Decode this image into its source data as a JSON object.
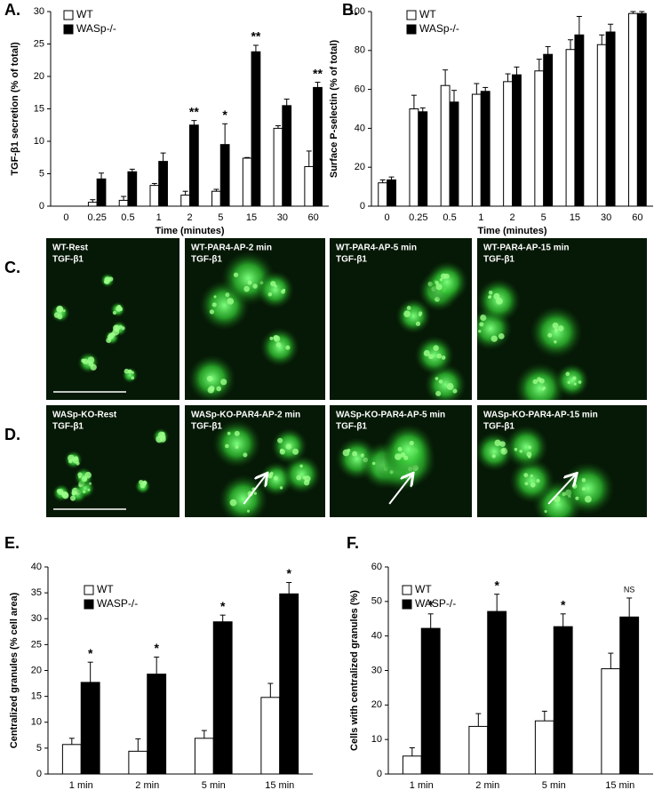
{
  "chart_data": [
    {
      "type": "bar",
      "panel_label": "A.",
      "y_label": "TGF-β1 secretion (% of total)",
      "x_label": "Time (minutes)",
      "categories": [
        "0",
        "0.25",
        "0.5",
        "1",
        "2",
        "5",
        "15",
        "30",
        "60"
      ],
      "series": [
        {
          "name": "WT",
          "color": "#ffffff",
          "values": [
            0,
            0.6,
            0.9,
            3.2,
            1.7,
            2.3,
            7.4,
            12,
            6.1
          ],
          "errors": [
            0,
            0.4,
            0.6,
            0.3,
            0.6,
            0.3,
            0.1,
            0.4,
            2.4
          ]
        },
        {
          "name": "WASp-/-",
          "color": "#000000",
          "values": [
            0,
            4.2,
            5.3,
            6.9,
            12.5,
            9.5,
            23.8,
            15.5,
            18.3
          ],
          "errors": [
            0,
            0.9,
            0.4,
            1.3,
            0.7,
            3.2,
            1.0,
            1.0,
            0.8
          ]
        }
      ],
      "significance": [
        null,
        null,
        null,
        null,
        "**",
        "*",
        "**",
        null,
        "**"
      ],
      "ylim": [
        0,
        30
      ],
      "yticks": [
        0,
        5,
        10,
        15,
        20,
        25,
        30
      ]
    },
    {
      "type": "bar",
      "panel_label": "B.",
      "y_label": "Surface P-selectin (% of total)",
      "x_label": "Time (minutes)",
      "categories": [
        "0",
        "0.25",
        "0.5",
        "1",
        "2",
        "5",
        "15",
        "30",
        "60"
      ],
      "series": [
        {
          "name": "WT",
          "color": "#ffffff",
          "values": [
            12,
            50,
            62,
            57.5,
            64,
            69.5,
            80.5,
            83,
            99
          ],
          "errors": [
            1.5,
            7,
            8,
            5.5,
            4,
            6,
            5,
            5,
            1
          ]
        },
        {
          "name": "WASp-/-",
          "color": "#000000",
          "values": [
            13.5,
            48.5,
            53.5,
            59,
            67.5,
            78,
            88,
            89.5,
            99
          ],
          "errors": [
            1.5,
            2,
            6,
            2,
            4,
            4,
            9.5,
            4,
            1
          ]
        }
      ],
      "ylim": [
        0,
        100
      ],
      "yticks": [
        0,
        20,
        40,
        60,
        80,
        100
      ]
    },
    {
      "type": "bar",
      "panel_label": "E.",
      "y_label": "Centralized granules (% cell area)",
      "categories": [
        "1 min",
        "2 min",
        "5 min",
        "15 min"
      ],
      "series": [
        {
          "name": "WT",
          "color": "#ffffff",
          "values": [
            5.7,
            4.4,
            6.9,
            14.8
          ],
          "errors": [
            1.2,
            2.4,
            1.5,
            2.7
          ]
        },
        {
          "name": "WASP-/-",
          "color": "#000000",
          "values": [
            17.7,
            19.3,
            29.4,
            34.8
          ],
          "errors": [
            3.9,
            3.3,
            1.3,
            2.2
          ]
        }
      ],
      "significance": [
        "*",
        "*",
        "*",
        "*"
      ],
      "ylim": [
        0,
        40
      ],
      "yticks": [
        0,
        5,
        10,
        15,
        20,
        25,
        30,
        35,
        40
      ]
    },
    {
      "type": "bar",
      "panel_label": "F.",
      "y_label": "Cells with centralized granules (%)",
      "categories": [
        "1 min",
        "2 min",
        "5 min",
        "15 min"
      ],
      "series": [
        {
          "name": "WT",
          "color": "#ffffff",
          "values": [
            5.2,
            13.8,
            15.4,
            30.5
          ],
          "errors": [
            2.4,
            3.7,
            2.8,
            4.5
          ]
        },
        {
          "name": "WASP-/-",
          "color": "#000000",
          "values": [
            42.2,
            47.1,
            42.7,
            45.5
          ],
          "errors": [
            4.2,
            5,
            3.7,
            5.5
          ]
        }
      ],
      "significance": [
        "*",
        "*",
        "*",
        "NS"
      ],
      "ylim": [
        0,
        60
      ],
      "yticks": [
        0,
        10,
        20,
        30,
        40,
        50,
        60
      ]
    }
  ],
  "images": [
    {
      "label": "C.",
      "panels": [
        {
          "title": "WT-Rest",
          "stain": "TGF-β1"
        },
        {
          "title": "WT-PAR4-AP-2 min",
          "stain": "TGF-β1"
        },
        {
          "title": "WT-PAR4-AP-5 min",
          "stain": "TGF-β1"
        },
        {
          "title": "WT-PAR4-AP-15 min",
          "stain": "TGF-β1"
        }
      ]
    },
    {
      "label": "D.",
      "panels": [
        {
          "title": "WASp-KO-Rest",
          "stain": "TGF-β1"
        },
        {
          "title": "WASp-KO-PAR4-AP-2 min",
          "stain": "TGF-β1"
        },
        {
          "title": "WASp-KO-PAR4-AP-5 min",
          "stain": "TGF-β1"
        },
        {
          "title": "WASp-KO-PAR4-AP-15 min",
          "stain": "TGF-β1"
        }
      ]
    }
  ]
}
